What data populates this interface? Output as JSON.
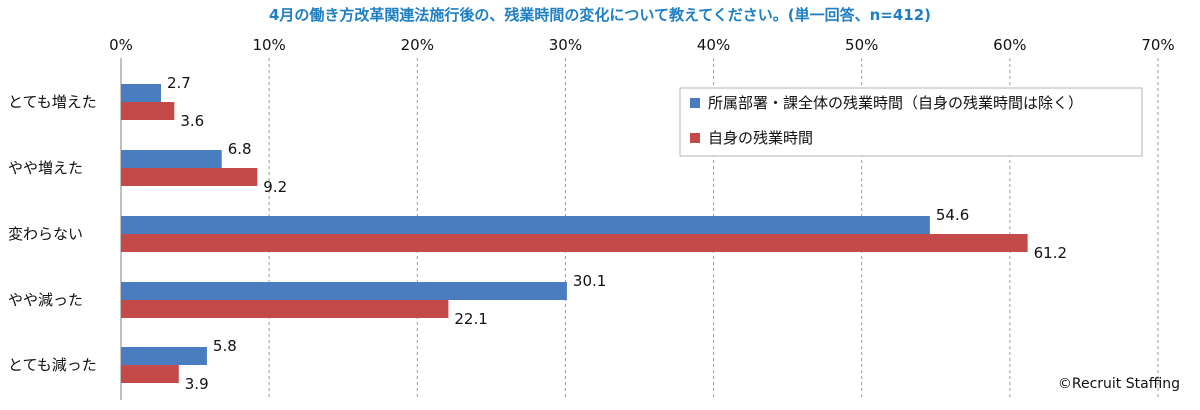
{
  "chart_data": {
    "type": "bar",
    "orientation": "horizontal",
    "title": "4月の働き方改革関連法施行後の、残業時間の変化について教えてください。(単一回答、n=412)",
    "categories": [
      "とても増えた",
      "やや増えた",
      "変わらない",
      "やや減った",
      "とても減った"
    ],
    "series": [
      {
        "name": "所属部署・課全体の残業時間（自身の残業時間は除く）",
        "color": "#4a7cc0",
        "values": [
          2.7,
          6.8,
          54.6,
          30.1,
          5.8
        ]
      },
      {
        "name": "自身の残業時間",
        "color": "#c34a48",
        "values": [
          3.6,
          9.2,
          61.2,
          22.1,
          3.9
        ]
      }
    ],
    "xlim": [
      0,
      70
    ],
    "x_ticks": [
      "0%",
      "10%",
      "20%",
      "30%",
      "40%",
      "50%",
      "60%",
      "70%"
    ],
    "grid": "vertical dashed",
    "legend_position": "top-right"
  },
  "credit": "©Recruit Staffing"
}
